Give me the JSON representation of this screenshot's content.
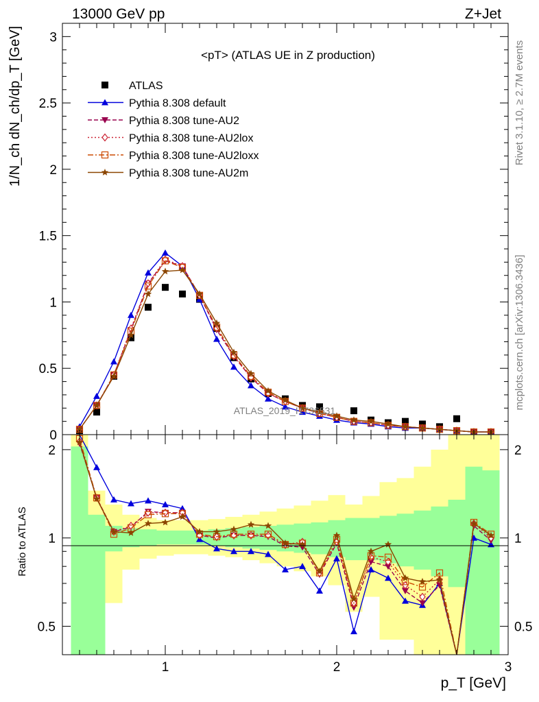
{
  "header": {
    "left": "13000 GeV pp",
    "right": "Z+Jet"
  },
  "side_texts": {
    "rivet": "Rivet 3.1.10, ≥ 2.7M events",
    "mcplots": "mcplots.cern.ch [arXiv:1306.3436]"
  },
  "watermark": "ATLAS_2019_I1736531",
  "chart_data": [
    {
      "type": "scatter",
      "title": "<pT> (ATLAS UE in Z production)",
      "ylabel": "1/N_ch dN_ch/dp_T [GeV]",
      "ylim": [
        0,
        3.1
      ],
      "xlim": [
        0.4,
        3.0
      ],
      "yticks": [
        "0",
        "0.5",
        "1",
        "1.5",
        "2",
        "2.5",
        "3"
      ],
      "legend_position": "top-left",
      "x": [
        0.5,
        0.6,
        0.7,
        0.8,
        0.9,
        1.0,
        1.1,
        1.2,
        1.3,
        1.4,
        1.5,
        1.6,
        1.7,
        1.8,
        1.9,
        2.0,
        2.1,
        2.2,
        2.3,
        2.4,
        2.5,
        2.6,
        2.7,
        2.8,
        2.9
      ],
      "series": [
        {
          "name": "ATLAS",
          "color": "#000000",
          "values": [
            0.03,
            0.17,
            0.44,
            0.73,
            0.96,
            1.11,
            1.06,
            1.02,
            0.8,
            0.58,
            0.42,
            0.31,
            0.27,
            0.22,
            0.21,
            0.13,
            0.18,
            0.11,
            0.09,
            0.1,
            0.08,
            0.06,
            0.12,
            0.02,
            0.02
          ]
        },
        {
          "name": "Pythia 8.308 default",
          "color": "#0000dd",
          "values": [
            0.06,
            0.29,
            0.55,
            0.9,
            1.22,
            1.37,
            1.27,
            1.02,
            0.72,
            0.51,
            0.37,
            0.27,
            0.21,
            0.17,
            0.14,
            0.11,
            0.09,
            0.08,
            0.06,
            0.05,
            0.05,
            0.04,
            0.03,
            0.02,
            0.02
          ]
        },
        {
          "name": "Pythia 8.308 tune-AU2",
          "color": "#99004d",
          "values": [
            0.04,
            0.22,
            0.45,
            0.79,
            1.14,
            1.31,
            1.27,
            1.05,
            0.79,
            0.59,
            0.43,
            0.31,
            0.25,
            0.2,
            0.16,
            0.13,
            0.1,
            0.09,
            0.07,
            0.06,
            0.05,
            0.04,
            0.03,
            0.02,
            0.02
          ]
        },
        {
          "name": "Pythia 8.308 tune-AU2lox",
          "color": "#cc2233",
          "values": [
            0.04,
            0.22,
            0.45,
            0.8,
            1.14,
            1.32,
            1.27,
            1.05,
            0.8,
            0.59,
            0.43,
            0.31,
            0.25,
            0.2,
            0.16,
            0.13,
            0.1,
            0.09,
            0.07,
            0.06,
            0.05,
            0.04,
            0.03,
            0.02,
            0.02
          ]
        },
        {
          "name": "Pythia 8.308 tune-AU2loxx",
          "color": "#cc4a00",
          "values": [
            0.04,
            0.22,
            0.45,
            0.78,
            1.12,
            1.31,
            1.26,
            1.05,
            0.81,
            0.6,
            0.44,
            0.32,
            0.25,
            0.2,
            0.16,
            0.13,
            0.1,
            0.09,
            0.07,
            0.06,
            0.05,
            0.04,
            0.03,
            0.02,
            0.02
          ]
        },
        {
          "name": "Pythia 8.308 tune-AU2m",
          "color": "#8b4500",
          "values": [
            0.04,
            0.22,
            0.44,
            0.75,
            1.06,
            1.23,
            1.24,
            1.06,
            0.84,
            0.62,
            0.46,
            0.33,
            0.26,
            0.2,
            0.17,
            0.14,
            0.11,
            0.1,
            0.08,
            0.06,
            0.05,
            0.04,
            0.03,
            0.02,
            0.02
          ]
        }
      ]
    },
    {
      "type": "line",
      "ylabel": "Ratio to ATLAS",
      "xlabel": "p_T [GeV]",
      "ylim": [
        0.4,
        2.25
      ],
      "xlim": [
        0.4,
        3.0
      ],
      "xticks": [
        "1",
        "2",
        "3"
      ],
      "yticks": [
        "0.5",
        "1",
        "2"
      ],
      "band_x_edges": [
        0.45,
        0.55,
        0.65,
        0.75,
        0.85,
        0.95,
        1.05,
        1.15,
        1.25,
        1.35,
        1.45,
        1.55,
        1.65,
        1.75,
        1.85,
        1.95,
        2.05,
        2.15,
        2.25,
        2.35,
        2.45,
        2.55,
        2.65,
        2.75,
        2.85,
        2.95
      ],
      "band_green_lo": [
        0.3,
        0.3,
        0.9,
        0.93,
        0.94,
        0.95,
        0.95,
        0.95,
        0.94,
        0.93,
        0.92,
        0.91,
        0.9,
        0.89,
        0.88,
        0.86,
        0.84,
        0.84,
        0.82,
        0.8,
        0.78,
        0.74,
        0.68,
        0.3,
        0.3
      ],
      "band_green_hi": [
        2.05,
        1.2,
        1.1,
        1.08,
        1.07,
        1.06,
        1.06,
        1.06,
        1.07,
        1.08,
        1.09,
        1.1,
        1.11,
        1.12,
        1.13,
        1.15,
        1.17,
        1.17,
        1.19,
        1.21,
        1.24,
        1.28,
        1.35,
        1.75,
        1.7
      ],
      "band_yellow_lo": [
        0.3,
        0.3,
        0.6,
        0.78,
        0.85,
        0.87,
        0.88,
        0.88,
        0.87,
        0.86,
        0.84,
        0.82,
        0.8,
        0.77,
        0.74,
        0.69,
        0.56,
        0.63,
        0.45,
        0.45,
        0.4,
        0.3,
        0.3,
        0.3,
        0.3
      ],
      "band_yellow_hi": [
        2.3,
        1.45,
        1.3,
        1.2,
        1.17,
        1.15,
        1.15,
        1.15,
        1.16,
        1.18,
        1.2,
        1.23,
        1.26,
        1.29,
        1.34,
        1.4,
        1.3,
        1.39,
        1.55,
        1.6,
        1.75,
        2.0,
        2.55,
        2.3,
        2.25
      ],
      "x": [
        0.5,
        0.6,
        0.7,
        0.8,
        0.9,
        1.0,
        1.1,
        1.2,
        1.3,
        1.4,
        1.5,
        1.6,
        1.7,
        1.8,
        1.9,
        2.0,
        2.1,
        2.2,
        2.3,
        2.4,
        2.5,
        2.6,
        2.7,
        2.8,
        2.9
      ],
      "series": [
        {
          "name": "Pythia 8.308 default",
          "color": "#0000dd",
          "values": [
            2.6,
            1.74,
            1.35,
            1.31,
            1.34,
            1.3,
            1.26,
            0.99,
            0.92,
            0.9,
            0.9,
            0.88,
            0.78,
            0.8,
            0.66,
            0.85,
            0.48,
            0.78,
            0.73,
            0.61,
            0.59,
            0.7,
            0.3,
            1.0,
            0.95
          ]
        },
        {
          "name": "Pythia 8.308 tune-AU2",
          "color": "#99004d",
          "values": [
            2.1,
            1.37,
            1.05,
            1.09,
            1.23,
            1.22,
            1.22,
            1.02,
            1.0,
            1.02,
            1.02,
            1.01,
            0.94,
            0.93,
            0.75,
            0.96,
            0.58,
            0.83,
            0.8,
            0.66,
            0.6,
            0.69,
            0.3,
            1.1,
            0.98
          ]
        },
        {
          "name": "Pythia 8.308 tune-AU2lox",
          "color": "#cc2233",
          "values": [
            2.13,
            1.37,
            1.05,
            1.1,
            1.22,
            1.22,
            1.22,
            1.02,
            1.01,
            1.02,
            1.02,
            1.02,
            0.95,
            0.97,
            0.76,
            0.97,
            0.6,
            0.86,
            0.83,
            0.69,
            0.63,
            0.72,
            0.3,
            1.12,
            1.0
          ]
        },
        {
          "name": "Pythia 8.308 tune-AU2loxx",
          "color": "#cc4a00",
          "values": [
            2.18,
            1.37,
            1.03,
            1.08,
            1.2,
            1.21,
            1.21,
            1.03,
            1.01,
            1.03,
            1.03,
            1.03,
            0.95,
            0.96,
            0.76,
            0.99,
            0.6,
            0.87,
            0.86,
            0.71,
            0.68,
            0.76,
            0.3,
            1.13,
            1.03
          ]
        },
        {
          "name": "Pythia 8.308 tune-AU2m",
          "color": "#8b4500",
          "values": [
            2.12,
            1.36,
            1.05,
            1.04,
            1.12,
            1.13,
            1.18,
            1.05,
            1.05,
            1.07,
            1.11,
            1.1,
            0.96,
            0.95,
            0.77,
            1.02,
            0.62,
            0.9,
            0.95,
            0.73,
            0.71,
            0.72,
            0.3,
            1.12,
            1.02
          ]
        }
      ]
    }
  ]
}
